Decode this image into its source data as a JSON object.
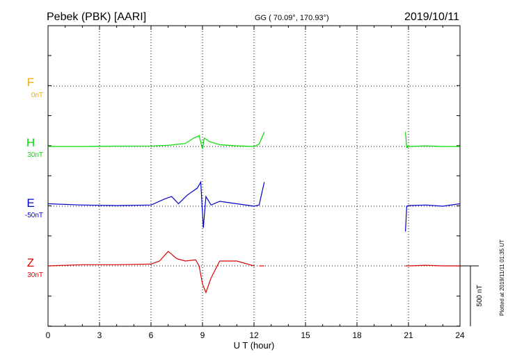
{
  "header": {
    "title": "Pebek (PBK)  [AARI]",
    "coords": "GG ( 70.09°, 170.93°)",
    "date": "2019/10/11"
  },
  "chart_data": {
    "type": "line",
    "xlabel": "U T (hour)",
    "xlim": [
      0,
      24
    ],
    "xticks": [
      0,
      3,
      6,
      9,
      12,
      15,
      18,
      21,
      24
    ],
    "scale_bar": "500 nT",
    "plot_note": "Plotted at 2019/11/11 01:35 UT",
    "grid": true,
    "series": [
      {
        "name": "F",
        "offset_label": "0nT",
        "color": "#ffa500",
        "points": []
      },
      {
        "name": "H",
        "offset_label": "30nT",
        "color": "#00dd00",
        "points": [
          [
            0,
            0
          ],
          [
            2,
            0
          ],
          [
            4,
            -3
          ],
          [
            6,
            -4
          ],
          [
            7,
            -10
          ],
          [
            8,
            -25
          ],
          [
            8.5,
            -70
          ],
          [
            8.8,
            -90
          ],
          [
            9.0,
            20
          ],
          [
            9.1,
            -70
          ],
          [
            9.4,
            -40
          ],
          [
            10,
            -15
          ],
          [
            11,
            -5
          ],
          [
            12,
            0
          ],
          [
            12.3,
            -20
          ],
          [
            12.6,
            -120
          ],
          [
            12.65,
            null
          ],
          [
            20.8,
            null
          ],
          [
            20.82,
            -120
          ],
          [
            20.9,
            10
          ],
          [
            21,
            0
          ],
          [
            22,
            -5
          ],
          [
            23,
            0
          ],
          [
            24,
            0
          ]
        ]
      },
      {
        "name": "E",
        "offset_label": "-50nT",
        "color": "#0000cc",
        "points": [
          [
            0,
            -20
          ],
          [
            2,
            -10
          ],
          [
            4,
            -5
          ],
          [
            6,
            -10
          ],
          [
            6.8,
            -60
          ],
          [
            7.2,
            -80
          ],
          [
            7.6,
            -20
          ],
          [
            8.1,
            -90
          ],
          [
            8.7,
            -150
          ],
          [
            8.9,
            -200
          ],
          [
            9.05,
            180
          ],
          [
            9.2,
            -80
          ],
          [
            9.5,
            -10
          ],
          [
            10,
            -40
          ],
          [
            11,
            -20
          ],
          [
            12,
            0
          ],
          [
            12.3,
            -10
          ],
          [
            12.6,
            -200
          ],
          [
            12.65,
            null
          ],
          [
            20.8,
            null
          ],
          [
            20.82,
            210
          ],
          [
            20.9,
            0
          ],
          [
            21,
            -5
          ],
          [
            22,
            -10
          ],
          [
            23,
            0
          ],
          [
            24,
            -20
          ]
        ]
      },
      {
        "name": "Z",
        "offset_label": "30nT",
        "color": "#dd0000",
        "points": [
          [
            0,
            0
          ],
          [
            2,
            -10
          ],
          [
            4,
            -10
          ],
          [
            6,
            -15
          ],
          [
            6.5,
            -40
          ],
          [
            7,
            -120
          ],
          [
            7.5,
            -60
          ],
          [
            8,
            -40
          ],
          [
            8.6,
            -50
          ],
          [
            8.8,
            0
          ],
          [
            9.0,
            150
          ],
          [
            9.2,
            220
          ],
          [
            9.5,
            100
          ],
          [
            10,
            -40
          ],
          [
            11,
            -40
          ],
          [
            12,
            0
          ],
          [
            12.1,
            null
          ],
          [
            12.3,
            0
          ],
          [
            12.6,
            0
          ],
          [
            12.65,
            null
          ],
          [
            20.8,
            null
          ],
          [
            20.82,
            0
          ],
          [
            21,
            0
          ],
          [
            22,
            -5
          ],
          [
            23,
            0
          ],
          [
            24,
            0
          ]
        ]
      }
    ]
  }
}
